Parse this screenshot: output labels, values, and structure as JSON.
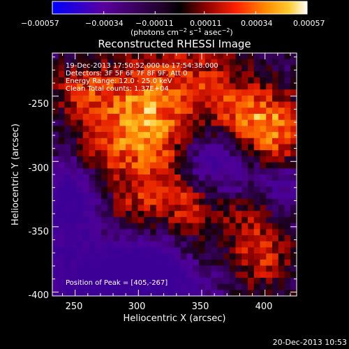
{
  "colorbar": {
    "tick_labels": [
      "−0.00057",
      "−0.00034",
      "−0.00011",
      "0.00011",
      "0.00034",
      "0.00057"
    ],
    "tick_values": [
      -0.00057,
      -0.00034,
      -0.00011,
      0.00011,
      0.00034,
      0.00057
    ],
    "range": [
      -0.00057,
      0.00057
    ],
    "unit_label": "(photons cm",
    "unit_exp1": "−2",
    "unit_mid": " s",
    "unit_exp2": "−1",
    "unit_tail": " asec",
    "unit_exp3": "−2",
    "unit_close": ")"
  },
  "chart_data": {
    "type": "heatmap",
    "title": "Reconstructed RHESSI Image",
    "xlabel": "Heliocentric X (arcsec)",
    "ylabel": "Heliocentric Y (arcsec)",
    "xlim": [
      232,
      425
    ],
    "ylim": [
      -403,
      -217
    ],
    "xticks": [
      250,
      300,
      350,
      400
    ],
    "yticks": [
      -250,
      -300,
      -350,
      -400
    ],
    "colormap": [
      "#0000ff",
      "#5a00a0",
      "#2a0040",
      "#000000",
      "#8a0000",
      "#ff2000",
      "#ff8c00",
      "#ffcc30",
      "#ffffff"
    ],
    "annotations": [
      "19-Dec-2013 17:50:52.000 to 17:54:38.000",
      "Detectors: 3F 5F 6F 7F 8F 9F, Att 0",
      "Energy Range: 12.0 - 25.0 keV",
      "Clean    Total counts: 1.37E+04"
    ],
    "peak_label": "Position of Peak = [405,-267]",
    "peak": [
      405,
      -267
    ]
  },
  "footer": {
    "timestamp": "20-Dec-2013 10:53"
  }
}
